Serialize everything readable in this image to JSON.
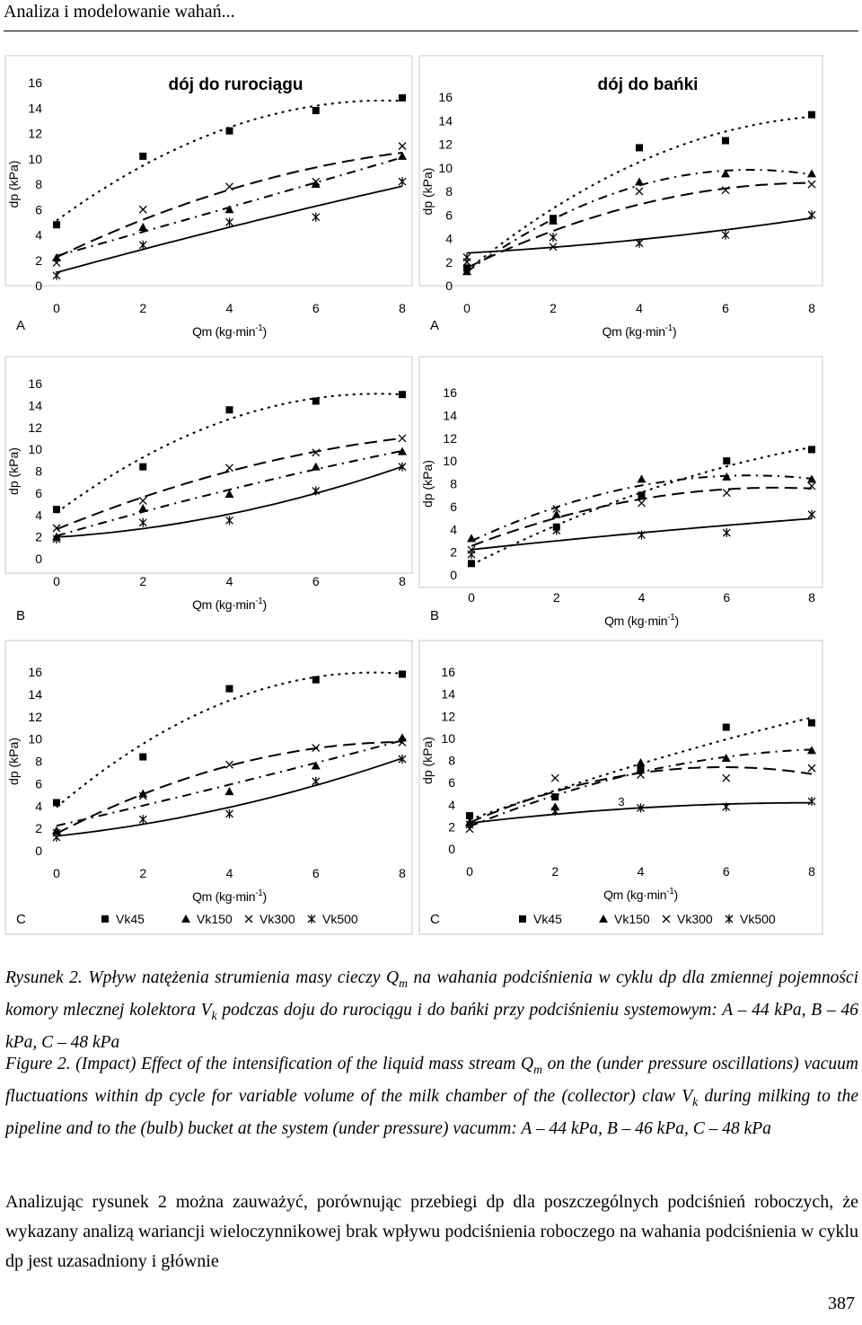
{
  "running_head": "Analiza i modelowanie wahań...",
  "page_number": "387",
  "figure": {
    "column_titles": [
      "dój do rurociągu",
      "dój do bańki"
    ],
    "row_labels": [
      "A",
      "B",
      "C"
    ],
    "y_axis_label": "dp (kPa)",
    "x_axis_label": "Qm (kg·min",
    "x_axis_label_sup": "-1",
    "x_axis_label_end": ")",
    "x_ticks": [
      "0",
      "2",
      "4",
      "6",
      "8"
    ],
    "y_ticks": [
      "0",
      "2",
      "4",
      "6",
      "8",
      "10",
      "12",
      "14",
      "16"
    ],
    "legend": [
      "Vk45",
      "Vk150",
      "Vk300",
      "Vk500"
    ],
    "stray_label": "3"
  },
  "chart_data": [
    {
      "type": "scatter",
      "title": "dój do rurociągu",
      "panel": "A",
      "xlabel": "Qm (kg·min-1)",
      "ylabel": "dp (kPa)",
      "xlim": [
        0,
        8
      ],
      "ylim": [
        0,
        16
      ],
      "series": [
        {
          "name": "Vk45",
          "x": [
            0,
            2,
            4,
            6,
            8
          ],
          "y": [
            4.8,
            10.2,
            12.2,
            13.8,
            14.8
          ]
        },
        {
          "name": "Vk150",
          "x": [
            0,
            2,
            4,
            6,
            8
          ],
          "y": [
            2.2,
            4.6,
            6.0,
            8.0,
            10.2
          ]
        },
        {
          "name": "Vk300",
          "x": [
            0,
            2,
            4,
            6,
            8
          ],
          "y": [
            1.8,
            6.0,
            7.8,
            8.2,
            11.0
          ]
        },
        {
          "name": "Vk500",
          "x": [
            0,
            2,
            4,
            6,
            8
          ],
          "y": [
            0.8,
            3.2,
            5.0,
            5.4,
            8.2
          ]
        }
      ]
    },
    {
      "type": "scatter",
      "title": "dój do bańki",
      "panel": "A",
      "xlabel": "Qm (kg·min-1)",
      "ylabel": "dp (kPa)",
      "xlim": [
        0,
        8
      ],
      "ylim": [
        0,
        16
      ],
      "series": [
        {
          "name": "Vk45",
          "x": [
            0,
            2,
            4,
            6,
            8
          ],
          "y": [
            1.5,
            5.7,
            11.7,
            12.3,
            14.5
          ]
        },
        {
          "name": "Vk150",
          "x": [
            0,
            2,
            4,
            6,
            8
          ],
          "y": [
            1.2,
            5.5,
            8.8,
            9.5,
            9.5
          ]
        },
        {
          "name": "Vk300",
          "x": [
            0,
            2,
            4,
            6,
            8
          ],
          "y": [
            2.0,
            3.3,
            8.0,
            8.1,
            8.6
          ]
        },
        {
          "name": "Vk500",
          "x": [
            0,
            2,
            4,
            6,
            8
          ],
          "y": [
            2.4,
            4.1,
            3.6,
            4.3,
            6.0
          ]
        }
      ]
    },
    {
      "type": "scatter",
      "panel": "B",
      "column": "dój do rurociągu",
      "xlabel": "Qm (kg·min-1)",
      "ylabel": "dp (kPa)",
      "xlim": [
        0,
        8
      ],
      "ylim": [
        0,
        16
      ],
      "series": [
        {
          "name": "Vk45",
          "x": [
            0,
            2,
            4,
            6,
            8
          ],
          "y": [
            4.5,
            8.4,
            13.6,
            14.4,
            15.0
          ]
        },
        {
          "name": "Vk150",
          "x": [
            0,
            2,
            4,
            6,
            8
          ],
          "y": [
            2.0,
            4.6,
            5.9,
            8.4,
            9.8
          ]
        },
        {
          "name": "Vk300",
          "x": [
            0,
            2,
            4,
            6,
            8
          ],
          "y": [
            2.8,
            5.3,
            8.3,
            9.7,
            11.0
          ]
        },
        {
          "name": "Vk500",
          "x": [
            0,
            2,
            4,
            6,
            8
          ],
          "y": [
            1.8,
            3.3,
            3.5,
            6.2,
            8.4
          ]
        }
      ]
    },
    {
      "type": "scatter",
      "panel": "B",
      "column": "dój do bańki",
      "xlabel": "Qm (kg·min-1)",
      "ylabel": "dp (kPa)",
      "xlim": [
        0,
        8
      ],
      "ylim": [
        0,
        16
      ],
      "series": [
        {
          "name": "Vk45",
          "x": [
            0,
            2,
            4,
            6,
            8
          ],
          "y": [
            1.0,
            4.2,
            7.0,
            10.0,
            11.0
          ]
        },
        {
          "name": "Vk150",
          "x": [
            0,
            2,
            4,
            6,
            8
          ],
          "y": [
            3.2,
            5.3,
            8.4,
            8.6,
            8.4
          ]
        },
        {
          "name": "Vk300",
          "x": [
            0,
            2,
            4,
            6,
            8
          ],
          "y": [
            2.2,
            5.8,
            6.3,
            7.2,
            7.8
          ]
        },
        {
          "name": "Vk500",
          "x": [
            0,
            2,
            4,
            6,
            8
          ],
          "y": [
            1.8,
            3.9,
            3.5,
            3.7,
            5.3
          ]
        }
      ]
    },
    {
      "type": "scatter",
      "panel": "C",
      "column": "dój do rurociągu",
      "xlabel": "Qm (kg·min-1)",
      "ylabel": "dp (kPa)",
      "xlim": [
        0,
        8
      ],
      "ylim": [
        0,
        16
      ],
      "series": [
        {
          "name": "Vk45",
          "x": [
            0,
            2,
            4,
            6,
            8
          ],
          "y": [
            4.3,
            8.4,
            14.5,
            15.3,
            15.8
          ]
        },
        {
          "name": "Vk150",
          "x": [
            0,
            2,
            4,
            6,
            8
          ],
          "y": [
            1.8,
            5.1,
            5.3,
            7.6,
            10.1
          ]
        },
        {
          "name": "Vk300",
          "x": [
            0,
            2,
            4,
            6,
            8
          ],
          "y": [
            1.6,
            4.9,
            7.7,
            9.2,
            9.7
          ]
        },
        {
          "name": "Vk500",
          "x": [
            0,
            2,
            4,
            6,
            8
          ],
          "y": [
            1.2,
            2.8,
            3.3,
            6.2,
            8.2
          ]
        }
      ]
    },
    {
      "type": "scatter",
      "panel": "C",
      "column": "dój do bańki",
      "xlabel": "Qm (kg·min-1)",
      "ylabel": "dp (kPa)",
      "xlim": [
        0,
        8
      ],
      "ylim": [
        0,
        16
      ],
      "series": [
        {
          "name": "Vk45",
          "x": [
            0,
            2,
            4,
            6,
            8
          ],
          "y": [
            3.0,
            4.7,
            7.3,
            11.0,
            11.4
          ]
        },
        {
          "name": "Vk150",
          "x": [
            0,
            2,
            4,
            6,
            8
          ],
          "y": [
            2.4,
            3.8,
            7.8,
            8.2,
            8.9
          ]
        },
        {
          "name": "Vk300",
          "x": [
            0,
            2,
            4,
            6,
            8
          ],
          "y": [
            1.8,
            6.4,
            6.7,
            6.4,
            7.3
          ]
        },
        {
          "name": "Vk500",
          "x": [
            0,
            2,
            4,
            6,
            8
          ],
          "y": [
            2.2,
            3.4,
            3.7,
            3.8,
            4.3
          ]
        }
      ]
    }
  ],
  "caption_pl": {
    "prefix": "Rysunek 2. Wpływ natężenia strumienia masy cieczy Q",
    "sub1": "m",
    "mid": " na wahania podciśnienia w cyklu dp dla zmiennej pojemności komory mlecznej kolektora V",
    "sub2": "k",
    "suffix": " podczas doju do rurociągu i do bańki przy podciśnieniu systemowym: A – 44 kPa, B – 46 kPa, C – 48 kPa"
  },
  "caption_en": {
    "prefix": "Figure 2. (Impact) Effect of the intensification of the liquid mass stream Q",
    "sub1": "m",
    "mid": " on the (under pressure oscillations) vacuum fluctuations within dp cycle for variable volume of the milk chamber of the (collector) claw V",
    "sub2": "k",
    "suffix": " during milking to the pipeline and to the (bulb) bucket at the system (under pressure) vacumm: A – 44 kPa, B – 46 kPa, C – 48 kPa"
  },
  "body_text": "Analizując rysunek 2 można zauważyć, porównując przebiegi dp dla poszczególnych podciśnień roboczych, że wykazany analizą wariancji wieloczynnikowej brak wpływu podciśnienia roboczego na wahania podciśnienia w cyklu dp jest uzasadniony i głównie"
}
